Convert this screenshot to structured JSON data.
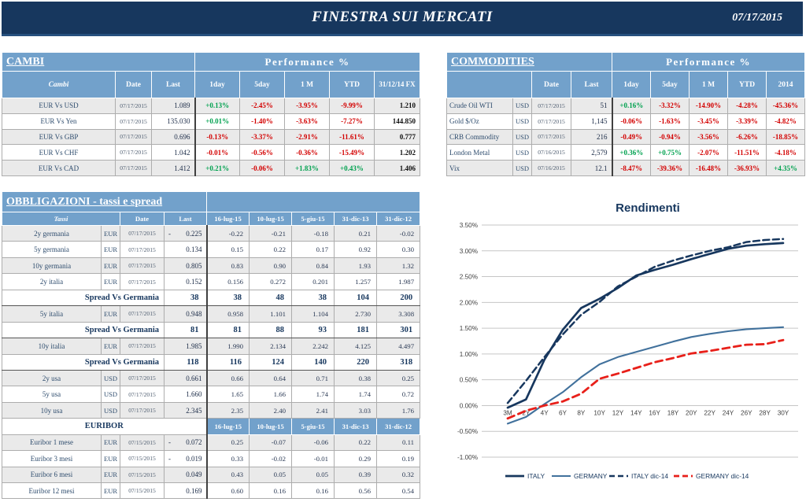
{
  "page": {
    "title": "FINESTRA SUI MERCATI",
    "date": "07/17/2015"
  },
  "colors": {
    "navy": "#17375E",
    "header_blue": "#72A1CB",
    "green": "#00A14F",
    "red": "#D30000",
    "italy": "#17375E",
    "germany": "#41719C",
    "germany_dic14": "#E8201A",
    "grid": "#C6C6C6"
  },
  "cambi": {
    "title": "CAMBI",
    "perf_title": "Performance  %",
    "headers": {
      "name": "Cambi",
      "date": "Date",
      "last": "Last",
      "perf": [
        "1day",
        "5day",
        "1 M",
        "YTD"
      ],
      "fx": "31/12/14 FX"
    },
    "rows": [
      {
        "name": "EUR Vs USD",
        "date": "07/17/2015",
        "last": "1.089",
        "perf": [
          "+0.13%",
          "-2.45%",
          "-3.95%",
          "-9.99%"
        ],
        "fx": "1.210",
        "shaded": true
      },
      {
        "name": "EUR Vs Yen",
        "date": "07/17/2015",
        "last": "135.030",
        "perf": [
          "+0.01%",
          "-1.40%",
          "-3.63%",
          "-7.27%"
        ],
        "fx": "144.850",
        "shaded": false
      },
      {
        "name": "EUR Vs GBP",
        "date": "07/17/2015",
        "last": "0.696",
        "perf": [
          "-0.13%",
          "-3.37%",
          "-2.91%",
          "-11.61%"
        ],
        "fx": "0.777",
        "shaded": true
      },
      {
        "name": "EUR Vs CHF",
        "date": "07/17/2015",
        "last": "1.042",
        "perf": [
          "-0.01%",
          "-0.56%",
          "-0.36%",
          "-15.49%"
        ],
        "fx": "1.202",
        "shaded": false
      },
      {
        "name": "EUR Vs CAD",
        "date": "07/17/2015",
        "last": "1.412",
        "perf": [
          "+0.21%",
          "-0.06%",
          "+1.83%",
          "+0.43%"
        ],
        "fx": "1.406",
        "shaded": true
      }
    ]
  },
  "commodities": {
    "title": "COMMODITIES",
    "perf_title": "Performance  %",
    "headers": {
      "date": "Date",
      "last": "Last",
      "perf": [
        "1day",
        "5day",
        "1 M",
        "YTD",
        "2014"
      ]
    },
    "rows": [
      {
        "name": "Crude Oil WTI",
        "cur": "USD",
        "date": "07/17/2015",
        "last": "51",
        "perf": [
          "+0.16%",
          "-3.32%",
          "-14.90%",
          "-4.28%",
          "-45.36%"
        ],
        "shaded": true
      },
      {
        "name": "Gold $/Oz",
        "cur": "USD",
        "date": "07/17/2015",
        "last": "1,145",
        "perf": [
          "-0.06%",
          "-1.63%",
          "-3.45%",
          "-3.39%",
          "-4.82%"
        ],
        "shaded": false
      },
      {
        "name": "CRB Commodity",
        "cur": "USD",
        "date": "07/17/2015",
        "last": "216",
        "perf": [
          "-0.49%",
          "-0.94%",
          "-3.56%",
          "-6.26%",
          "-18.85%"
        ],
        "shaded": true
      },
      {
        "name": "London Metal",
        "cur": "USD",
        "date": "07/16/2015",
        "last": "2,579",
        "perf": [
          "+0.36%",
          "+0.75%",
          "-2.07%",
          "-11.51%",
          "-4.18%"
        ],
        "shaded": false
      },
      {
        "name": "Vix",
        "cur": "USD",
        "date": "07/16/2015",
        "last": "12.1",
        "perf": [
          "-8.47%",
          "-39.36%",
          "-16.48%",
          "-36.93%",
          "+4.35%"
        ],
        "shaded": true
      }
    ]
  },
  "obbligazioni": {
    "title": "OBBLIGAZIONI - tassi e spread",
    "headers": {
      "name": "Tassi",
      "date": "Date",
      "last": "Last",
      "cols": [
        "16-lug-15",
        "10-lug-15",
        "5-giu-15",
        "31-dic-13",
        "31-dic-12"
      ]
    },
    "euribor_header": {
      "label": "EURIBOR",
      "cols": [
        "16-lug-15",
        "10-lug-15",
        "5-giu-15",
        "31-dic-13",
        "31-dic-12"
      ]
    },
    "rows": [
      {
        "type": "rate",
        "name": "2y germania",
        "cur": "EUR",
        "date": "07/17/2015",
        "neg": true,
        "last": "0.225",
        "vals": [
          "-0.22",
          "-0.21",
          "-0.18",
          "0.21",
          "-0.02"
        ],
        "shaded": true
      },
      {
        "type": "rate",
        "name": "5y germania",
        "cur": "EUR",
        "date": "07/17/2015",
        "last": "0.134",
        "vals": [
          "0.15",
          "0.22",
          "0.17",
          "0.92",
          "0.30"
        ],
        "shaded": false
      },
      {
        "type": "rate",
        "name": "10y germania",
        "cur": "EUR",
        "date": "07/17/2015",
        "last": "0.805",
        "vals": [
          "0.83",
          "0.90",
          "0.84",
          "1.93",
          "1.32"
        ],
        "shaded": true
      },
      {
        "type": "rate",
        "name": "2y italia",
        "cur": "EUR",
        "date": "07/17/2015",
        "last": "0.152",
        "vals": [
          "0.156",
          "0.272",
          "0.201",
          "1.257",
          "1.987"
        ],
        "shaded": false,
        "sep": true
      },
      {
        "type": "spread",
        "name": "Spread Vs Germania",
        "last": "38",
        "vals": [
          "38",
          "48",
          "38",
          "104",
          "200"
        ]
      },
      {
        "type": "rate",
        "name": "5y italia",
        "cur": "EUR",
        "date": "07/17/2015",
        "last": "0.948",
        "vals": [
          "0.958",
          "1.101",
          "1.104",
          "2.730",
          "3.308"
        ],
        "shaded": true
      },
      {
        "type": "spread",
        "name": "Spread Vs Germania",
        "last": "81",
        "vals": [
          "81",
          "88",
          "93",
          "181",
          "301"
        ]
      },
      {
        "type": "rate",
        "name": "10y italia",
        "cur": "EUR",
        "date": "07/17/2015",
        "last": "1.985",
        "vals": [
          "1.990",
          "2.134",
          "2.242",
          "4.125",
          "4.497"
        ],
        "shaded": true
      },
      {
        "type": "spread",
        "name": "Spread Vs Germania",
        "last": "118",
        "vals": [
          "116",
          "124",
          "140",
          "220",
          "318"
        ]
      },
      {
        "type": "rate",
        "name": "2y usa",
        "cur": "USD",
        "date": "07/17/2015",
        "last": "0.661",
        "vals": [
          "0.66",
          "0.64",
          "0.71",
          "0.38",
          "0.25"
        ],
        "shaded": true
      },
      {
        "type": "rate",
        "name": "5y usa",
        "cur": "USD",
        "date": "07/17/2015",
        "last": "1.660",
        "vals": [
          "1.65",
          "1.66",
          "1.74",
          "1.74",
          "0.72"
        ],
        "shaded": false
      },
      {
        "type": "rate",
        "name": "10y usa",
        "cur": "USD",
        "date": "07/17/2015",
        "last": "2.345",
        "vals": [
          "2.35",
          "2.40",
          "2.41",
          "3.03",
          "1.76"
        ],
        "shaded": true
      },
      {
        "type": "subheader"
      },
      {
        "type": "rate",
        "name": "Euribor 1 mese",
        "cur": "EUR",
        "date": "07/15/2015",
        "neg": true,
        "last": "0.072",
        "vals": [
          "0.25",
          "-0.07",
          "-0.06",
          "0.22",
          "0.11"
        ],
        "shaded": true
      },
      {
        "type": "rate",
        "name": "Euribor 3 mesi",
        "cur": "EUR",
        "date": "07/15/2015",
        "neg": true,
        "last": "0.019",
        "vals": [
          "0.33",
          "-0.02",
          "-0.01",
          "0.29",
          "0.19"
        ],
        "shaded": false
      },
      {
        "type": "rate",
        "name": "Euribor 6 mesi",
        "cur": "EUR",
        "date": "07/15/2015",
        "last": "0.049",
        "vals": [
          "0.43",
          "0.05",
          "0.05",
          "0.39",
          "0.32"
        ],
        "shaded": true
      },
      {
        "type": "rate",
        "name": "Euribor 12 mesi",
        "cur": "EUR",
        "date": "07/15/2015",
        "last": "0.169",
        "vals": [
          "0.60",
          "0.16",
          "0.16",
          "0.56",
          "0.54"
        ],
        "shaded": false
      }
    ]
  },
  "chart_data": {
    "type": "line",
    "title": "Rendimenti",
    "x_labels": [
      "3M",
      "2Y",
      "4Y",
      "6Y",
      "8Y",
      "10Y",
      "12Y",
      "14Y",
      "16Y",
      "18Y",
      "20Y",
      "22Y",
      "24Y",
      "26Y",
      "28Y",
      "30Y"
    ],
    "ylim": [
      -1.0,
      3.5
    ],
    "ytick_step": 0.5,
    "ytick_labels": [
      "3.50%",
      "3.00%",
      "2.50%",
      "2.00%",
      "1.50%",
      "1.00%",
      "0.50%",
      "0.00%",
      "-0.50%",
      "-1.00%"
    ],
    "grid": true,
    "legend_position": "bottom",
    "series": [
      {
        "name": "ITALY",
        "color": "#17375E",
        "dash": false,
        "values": [
          -0.04,
          0.12,
          0.89,
          1.47,
          1.89,
          2.07,
          2.28,
          2.52,
          2.63,
          2.73,
          2.84,
          2.94,
          3.04,
          3.1,
          3.13,
          3.15
        ]
      },
      {
        "name": "GERMANY",
        "color": "#41719C",
        "dash": false,
        "values": [
          -0.35,
          -0.22,
          0.03,
          0.26,
          0.55,
          0.8,
          0.94,
          1.04,
          1.14,
          1.24,
          1.33,
          1.39,
          1.44,
          1.48,
          1.5,
          1.52
        ]
      },
      {
        "name": "ITALY dic-14",
        "color": "#17375E",
        "dash": true,
        "values": [
          0.05,
          0.48,
          0.94,
          1.38,
          1.76,
          2.01,
          2.31,
          2.5,
          2.69,
          2.81,
          2.91,
          3.0,
          3.07,
          3.17,
          3.21,
          3.23
        ]
      },
      {
        "name": "GERMANY dic-14",
        "color": "#E8201A",
        "dash": true,
        "values": [
          -0.25,
          -0.1,
          0.0,
          0.08,
          0.23,
          0.52,
          0.62,
          0.73,
          0.84,
          0.92,
          1.01,
          1.06,
          1.12,
          1.18,
          1.19,
          1.27
        ]
      }
    ]
  }
}
